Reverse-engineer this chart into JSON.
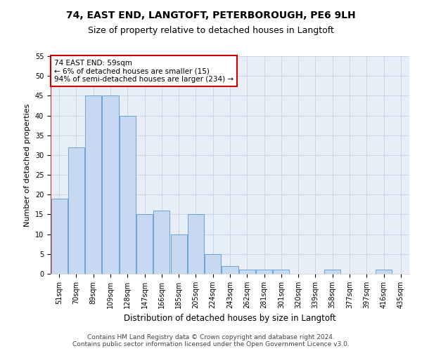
{
  "title_line1": "74, EAST END, LANGTOFT, PETERBOROUGH, PE6 9LH",
  "title_line2": "Size of property relative to detached houses in Langtoft",
  "xlabel": "Distribution of detached houses by size in Langtoft",
  "ylabel": "Number of detached properties",
  "categories": [
    "51sqm",
    "70sqm",
    "89sqm",
    "109sqm",
    "128sqm",
    "147sqm",
    "166sqm",
    "185sqm",
    "205sqm",
    "224sqm",
    "243sqm",
    "262sqm",
    "281sqm",
    "301sqm",
    "320sqm",
    "339sqm",
    "358sqm",
    "377sqm",
    "397sqm",
    "416sqm",
    "435sqm"
  ],
  "values": [
    19,
    32,
    45,
    45,
    40,
    15,
    16,
    10,
    15,
    5,
    2,
    1,
    1,
    1,
    0,
    0,
    1,
    0,
    0,
    1,
    0
  ],
  "bar_color": "#c6d9f0",
  "bar_edge_color": "#5b9bd5",
  "annotation_box_text": "74 EAST END: 59sqm\n← 6% of detached houses are smaller (15)\n94% of semi-detached houses are larger (234) →",
  "annotation_box_color": "#ffffff",
  "annotation_box_edge_color": "#cc0000",
  "red_line_color": "#cc0000",
  "ylim": [
    0,
    55
  ],
  "yticks": [
    0,
    5,
    10,
    15,
    20,
    25,
    30,
    35,
    40,
    45,
    50,
    55
  ],
  "footer_line1": "Contains HM Land Registry data © Crown copyright and database right 2024.",
  "footer_line2": "Contains public sector information licensed under the Open Government Licence v3.0.",
  "bg_color": "#ffffff",
  "axes_bg_color": "#e8eef8",
  "grid_color": "#c8d0e0",
  "title1_fontsize": 10,
  "title2_fontsize": 9,
  "xlabel_fontsize": 8.5,
  "ylabel_fontsize": 8,
  "tick_fontsize": 7,
  "annotation_fontsize": 7.5,
  "footer_fontsize": 6.5
}
